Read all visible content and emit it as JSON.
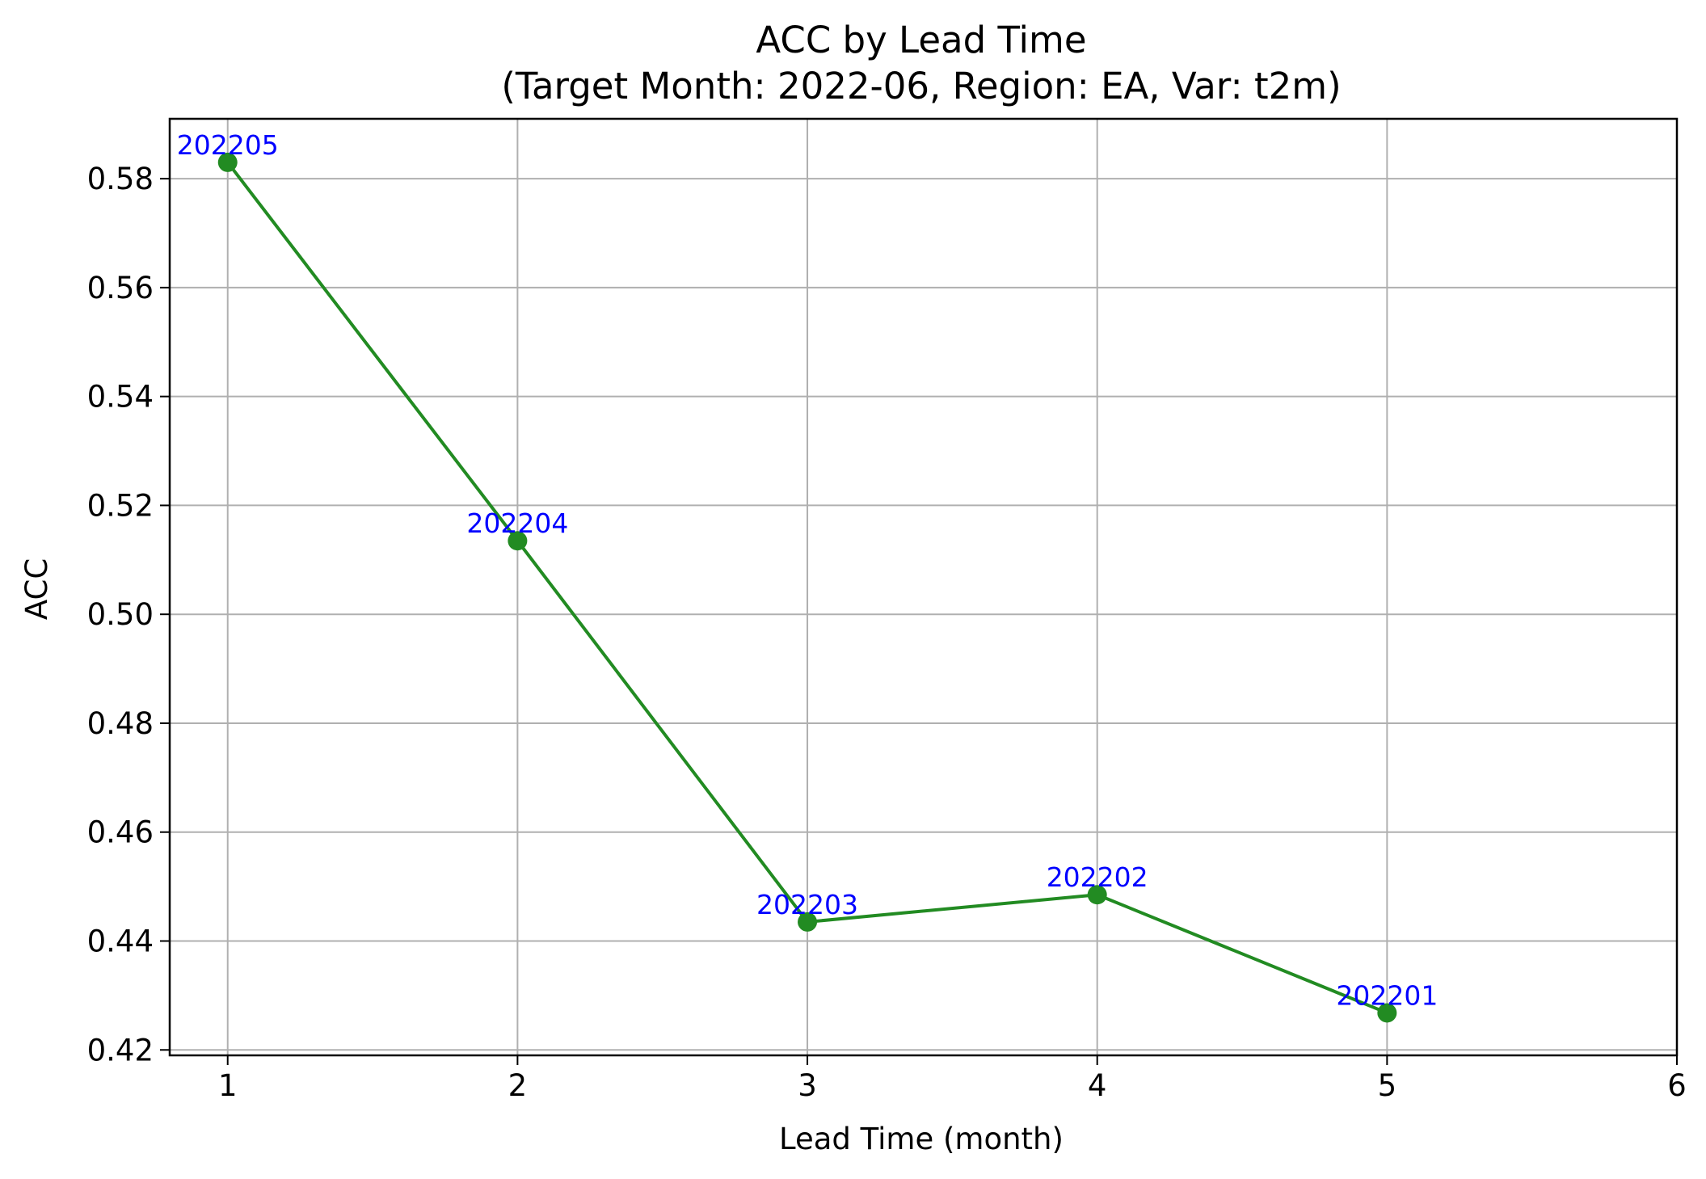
{
  "chart_data": {
    "type": "line",
    "title": "ACC by Lead Time",
    "subtitle": "(Target Month: 2022-06, Region: EA, Var: t2m)",
    "xlabel": "Lead Time (month)",
    "ylabel": "ACC",
    "xlim": [
      0.8,
      6
    ],
    "ylim": [
      0.419,
      0.591
    ],
    "x_ticks": [
      "1",
      "2",
      "3",
      "4",
      "5",
      "6"
    ],
    "x_tick_values": [
      1,
      2,
      3,
      4,
      5,
      6
    ],
    "y_ticks": [
      "0.42",
      "0.44",
      "0.46",
      "0.48",
      "0.50",
      "0.52",
      "0.54",
      "0.56",
      "0.58"
    ],
    "y_tick_values": [
      0.42,
      0.44,
      0.46,
      0.48,
      0.5,
      0.52,
      0.54,
      0.56,
      0.58
    ],
    "grid": true,
    "series": [
      {
        "color": "#228b22",
        "x": [
          1,
          2,
          3,
          4,
          5
        ],
        "values": [
          0.583,
          0.5135,
          0.4435,
          0.4485,
          0.4268
        ],
        "labels": [
          "202205",
          "202204",
          "202203",
          "202202",
          "202201"
        ]
      }
    ],
    "label_color": "#0000ff"
  }
}
